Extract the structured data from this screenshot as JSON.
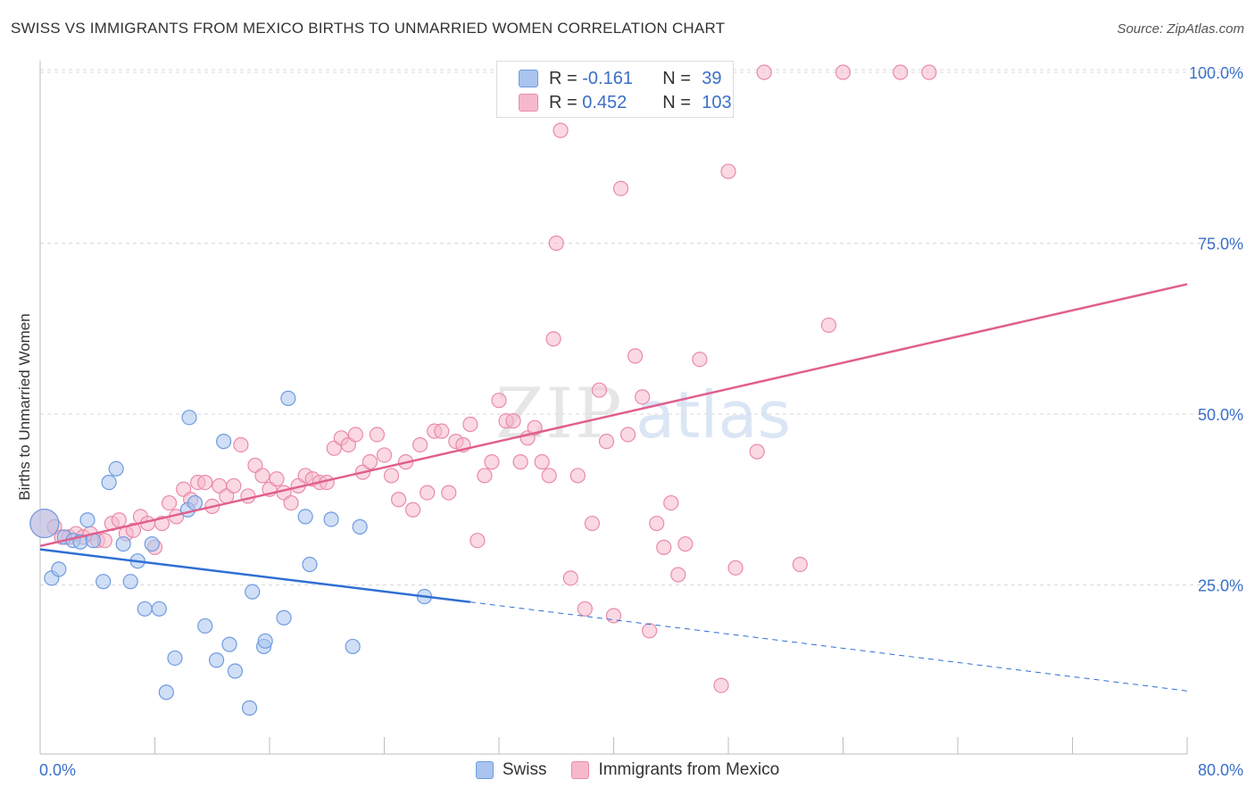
{
  "title": "SWISS VS IMMIGRANTS FROM MEXICO BIRTHS TO UNMARRIED WOMEN CORRELATION CHART",
  "source": "Source: ZipAtlas.com",
  "watermark": {
    "zip": "ZIP",
    "atlas": "atlas"
  },
  "colors": {
    "swiss_fill": "#a9c4ee",
    "swiss_stroke": "#6f9be0",
    "swiss_line": "#2f6fd4",
    "mexico_fill": "#f6b9cc",
    "mexico_stroke": "#ea8aa8",
    "mexico_line": "#e05f8e",
    "tick_label": "#3a6fc9",
    "grid": "#d9d9d9"
  },
  "stats": [
    {
      "r_label": "R =",
      "r_value": "-0.161",
      "n_label": "N =",
      "n_value": "39"
    },
    {
      "r_label": "R =",
      "r_value": "0.452",
      "n_label": "N =",
      "n_value": "103"
    }
  ],
  "legend": [
    "Swiss",
    "Immigrants from Mexico"
  ],
  "chart_data": {
    "type": "scatter",
    "title": "SWISS VS IMMIGRANTS FROM MEXICO BIRTHS TO UNMARRIED WOMEN CORRELATION CHART",
    "xlabel": "",
    "ylabel": "Births to Unmarried Women",
    "xlim": [
      0,
      80
    ],
    "ylim": [
      0,
      102
    ],
    "x_tick_labels": [
      "0.0%",
      "80.0%"
    ],
    "y_ticks": [
      25,
      50,
      75,
      100
    ],
    "y_tick_labels": [
      "25.0%",
      "50.0%",
      "75.0%",
      "100.0%"
    ],
    "grid": true,
    "legend_position": "bottom",
    "series": [
      {
        "name": "Swiss",
        "points": [
          [
            0.3,
            34.0
          ],
          [
            0.8,
            26.0
          ],
          [
            1.3,
            27.3
          ],
          [
            1.7,
            32.0
          ],
          [
            2.3,
            31.5
          ],
          [
            2.8,
            31.3
          ],
          [
            3.3,
            34.5
          ],
          [
            3.7,
            31.5
          ],
          [
            4.4,
            25.5
          ],
          [
            4.8,
            40.0
          ],
          [
            5.3,
            42.0
          ],
          [
            5.8,
            31.0
          ],
          [
            6.3,
            25.5
          ],
          [
            6.8,
            28.5
          ],
          [
            7.3,
            21.5
          ],
          [
            7.8,
            31.0
          ],
          [
            8.3,
            21.5
          ],
          [
            9.4,
            14.3
          ],
          [
            8.8,
            9.3
          ],
          [
            10.3,
            36.0
          ],
          [
            10.4,
            49.5
          ],
          [
            10.8,
            37.0
          ],
          [
            11.5,
            19.0
          ],
          [
            12.3,
            14.0
          ],
          [
            12.8,
            46.0
          ],
          [
            13.2,
            16.3
          ],
          [
            13.6,
            12.4
          ],
          [
            14.6,
            7.0
          ],
          [
            14.8,
            24.0
          ],
          [
            15.6,
            16.0
          ],
          [
            15.7,
            16.8
          ],
          [
            17.0,
            20.2
          ],
          [
            17.3,
            52.3
          ],
          [
            18.5,
            35.0
          ],
          [
            18.8,
            28.0
          ],
          [
            20.3,
            34.6
          ],
          [
            21.8,
            16.0
          ],
          [
            22.3,
            33.5
          ],
          [
            26.8,
            23.3
          ]
        ],
        "trend": {
          "x": [
            0,
            30
          ],
          "y": [
            30.2,
            22.5
          ],
          "dashed_to": [
            80,
            9.5
          ]
        }
      },
      {
        "name": "Immigrants from Mexico",
        "points": [
          [
            0.3,
            34.0
          ],
          [
            1.0,
            33.5
          ],
          [
            1.5,
            32.0
          ],
          [
            2.0,
            32.0
          ],
          [
            2.5,
            32.5
          ],
          [
            3.0,
            32.0
          ],
          [
            3.5,
            32.5
          ],
          [
            4.0,
            31.5
          ],
          [
            4.5,
            31.5
          ],
          [
            5.0,
            34.0
          ],
          [
            5.5,
            34.5
          ],
          [
            6.0,
            32.5
          ],
          [
            6.5,
            33.0
          ],
          [
            7.0,
            35.0
          ],
          [
            7.5,
            34.0
          ],
          [
            8.0,
            30.5
          ],
          [
            8.5,
            34.0
          ],
          [
            9.0,
            37.0
          ],
          [
            9.5,
            35.0
          ],
          [
            10.0,
            39.0
          ],
          [
            10.5,
            37.5
          ],
          [
            11.0,
            40.0
          ],
          [
            11.5,
            40.0
          ],
          [
            12.0,
            36.5
          ],
          [
            12.5,
            39.5
          ],
          [
            13.0,
            38.0
          ],
          [
            13.5,
            39.5
          ],
          [
            14.0,
            45.5
          ],
          [
            14.5,
            38.0
          ],
          [
            15.0,
            42.5
          ],
          [
            15.5,
            41.0
          ],
          [
            16.0,
            39.0
          ],
          [
            16.5,
            40.5
          ],
          [
            17.0,
            38.5
          ],
          [
            17.5,
            37.0
          ],
          [
            18.0,
            39.5
          ],
          [
            18.5,
            41.0
          ],
          [
            19.0,
            40.5
          ],
          [
            19.5,
            40.0
          ],
          [
            20.0,
            40.0
          ],
          [
            20.5,
            45.0
          ],
          [
            21.0,
            46.5
          ],
          [
            21.5,
            45.5
          ],
          [
            22.0,
            47.0
          ],
          [
            22.5,
            41.5
          ],
          [
            23.0,
            43.0
          ],
          [
            23.5,
            47.0
          ],
          [
            24.0,
            44.0
          ],
          [
            24.5,
            41.0
          ],
          [
            25.0,
            37.5
          ],
          [
            25.5,
            43.0
          ],
          [
            26.0,
            36.0
          ],
          [
            26.5,
            45.5
          ],
          [
            27.0,
            38.5
          ],
          [
            27.5,
            47.5
          ],
          [
            28.0,
            47.5
          ],
          [
            28.5,
            38.5
          ],
          [
            29.0,
            46.0
          ],
          [
            29.5,
            45.5
          ],
          [
            30.0,
            48.5
          ],
          [
            30.5,
            31.5
          ],
          [
            31.0,
            41.0
          ],
          [
            31.5,
            43.0
          ],
          [
            32.0,
            52.0
          ],
          [
            32.5,
            49.0
          ],
          [
            33.0,
            49.0
          ],
          [
            33.5,
            43.0
          ],
          [
            34.0,
            46.5
          ],
          [
            34.5,
            48.0
          ],
          [
            35.0,
            43.0
          ],
          [
            35.5,
            41.0
          ],
          [
            35.8,
            61.0
          ],
          [
            36.0,
            75.0
          ],
          [
            36.3,
            91.5
          ],
          [
            37.0,
            26.0
          ],
          [
            37.5,
            41.0
          ],
          [
            38.0,
            21.5
          ],
          [
            38.5,
            34.0
          ],
          [
            39.0,
            53.5
          ],
          [
            39.5,
            46.0
          ],
          [
            40.0,
            20.5
          ],
          [
            40.5,
            83.0
          ],
          [
            41.0,
            47.0
          ],
          [
            41.5,
            58.5
          ],
          [
            42.0,
            52.5
          ],
          [
            42.5,
            18.3
          ],
          [
            43.0,
            34.0
          ],
          [
            43.5,
            30.5
          ],
          [
            44.0,
            37.0
          ],
          [
            44.5,
            26.5
          ],
          [
            45.0,
            31.0
          ],
          [
            46.0,
            58.0
          ],
          [
            46.5,
            100.0
          ],
          [
            47.5,
            10.3
          ],
          [
            48.0,
            85.5
          ],
          [
            48.5,
            27.5
          ],
          [
            50.0,
            44.5
          ],
          [
            50.5,
            100.0
          ],
          [
            53.0,
            28.0
          ],
          [
            55.0,
            63.0
          ],
          [
            56.0,
            100.0
          ],
          [
            60.0,
            100.0
          ],
          [
            62.0,
            100.0
          ]
        ],
        "trend": {
          "x": [
            0,
            80
          ],
          "y": [
            30.7,
            69.0
          ]
        }
      }
    ]
  }
}
